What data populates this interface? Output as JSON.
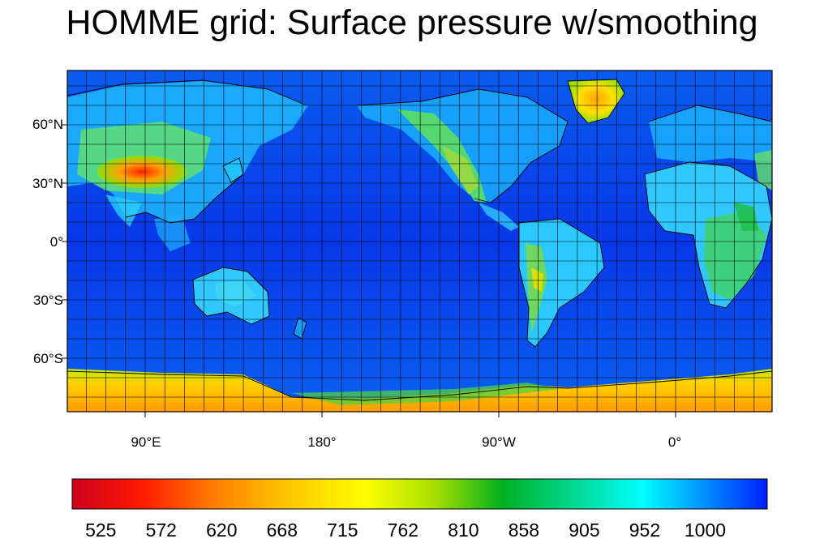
{
  "title": "HOMME grid: Surface pressure w/smoothing",
  "map": {
    "projection": "cylindrical equidistant",
    "central_longitude": 180,
    "lat_labels": [
      "60°N",
      "30°N",
      "0°",
      "30°S",
      "60°S"
    ],
    "lon_labels": [
      "90°E",
      "180°",
      "90°W",
      "0°"
    ],
    "graticule_spacing_deg": 10,
    "field": "surface pressure"
  },
  "colorbar": {
    "labels": [
      "525",
      "572",
      "620",
      "668",
      "715",
      "762",
      "810",
      "858",
      "905",
      "952",
      "1000"
    ],
    "colors": [
      "#cc0020",
      "#ff1a00",
      "#ff7a00",
      "#ffc000",
      "#ffff00",
      "#a8e000",
      "#00b020",
      "#00d890",
      "#00ffff",
      "#0090ff",
      "#0020ff"
    ]
  }
}
